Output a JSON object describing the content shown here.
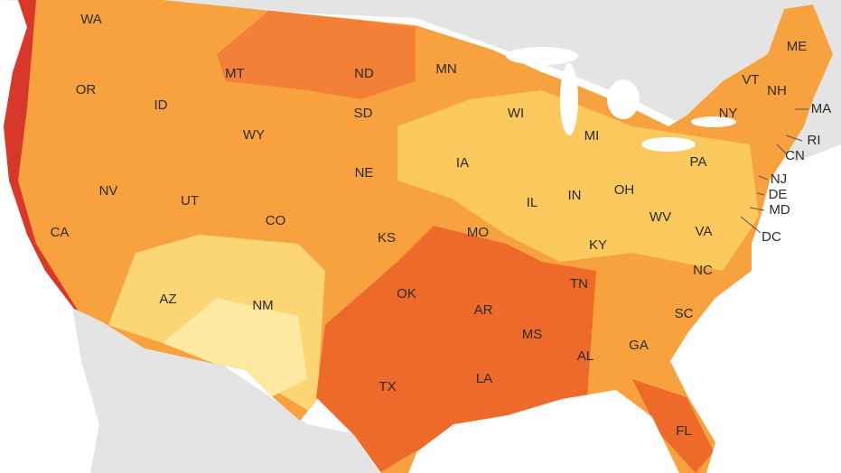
{
  "map": {
    "labels": [
      "WA",
      "OR",
      "CA",
      "NV",
      "ID",
      "MT",
      "WY",
      "UT",
      "CO",
      "AZ",
      "NM",
      "ND",
      "SD",
      "NE",
      "KS",
      "OK",
      "TX",
      "MN",
      "IA",
      "MO",
      "AR",
      "LA",
      "WI",
      "IL",
      "MS",
      "MI",
      "IN",
      "KY",
      "TN",
      "AL",
      "OH",
      "WV",
      "VA",
      "NC",
      "SC",
      "GA",
      "FL",
      "PA",
      "NY",
      "VT",
      "NH",
      "ME",
      "MA",
      "RI",
      "CN",
      "NJ",
      "DE",
      "MD",
      "DC"
    ]
  }
}
